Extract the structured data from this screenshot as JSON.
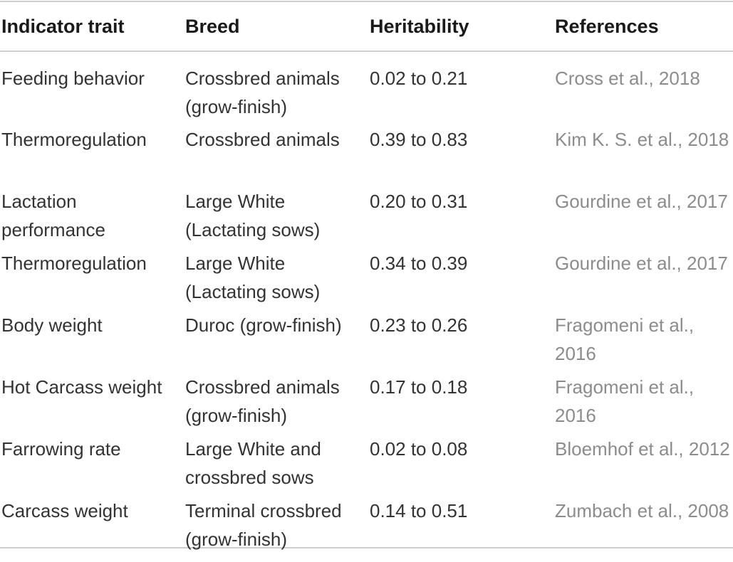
{
  "table": {
    "headers": {
      "trait": "Indicator trait",
      "breed": "Breed",
      "heritability": "Heritability",
      "references": "References"
    },
    "rows": [
      {
        "trait": "Feeding behavior",
        "breed": "Crossbred animals (grow-finish)",
        "heritability": "0.02 to 0.21",
        "reference": "Cross et al., 2018"
      },
      {
        "trait": "Thermoregulation",
        "breed": "Crossbred animals",
        "heritability": "0.39 to 0.83",
        "reference": "Kim K. S. et al., 2018"
      },
      {
        "trait": "Lactation performance",
        "breed": "Large White (Lactating sows)",
        "heritability": "0.20 to 0.31",
        "reference": "Gourdine et al., 2017"
      },
      {
        "trait": "Thermoregulation",
        "breed": "Large White (Lactating sows)",
        "heritability": "0.34 to 0.39",
        "reference": "Gourdine et al., 2017"
      },
      {
        "trait": "Body weight",
        "breed": "Duroc (grow-finish)",
        "heritability": "0.23 to 0.26",
        "reference": "Fragomeni et al., 2016"
      },
      {
        "trait": "Hot Carcass weight",
        "breed": "Crossbred animals (grow-finish)",
        "heritability": "0.17 to 0.18",
        "reference": "Fragomeni et al., 2016"
      },
      {
        "trait": "Farrowing rate",
        "breed": "Large White and crossbred sows",
        "heritability": "0.02 to 0.08",
        "reference": "Bloemhof et al., 2012"
      },
      {
        "trait": "Carcass weight",
        "breed": "Terminal crossbred (grow-finish)",
        "heritability": "0.14 to 0.51",
        "reference": "Zumbach et al., 2008"
      }
    ]
  },
  "colors": {
    "text": "#333333",
    "header_text": "#1a1a1a",
    "reference_text": "#8c8c8c",
    "rule": "#cfcfcf"
  }
}
